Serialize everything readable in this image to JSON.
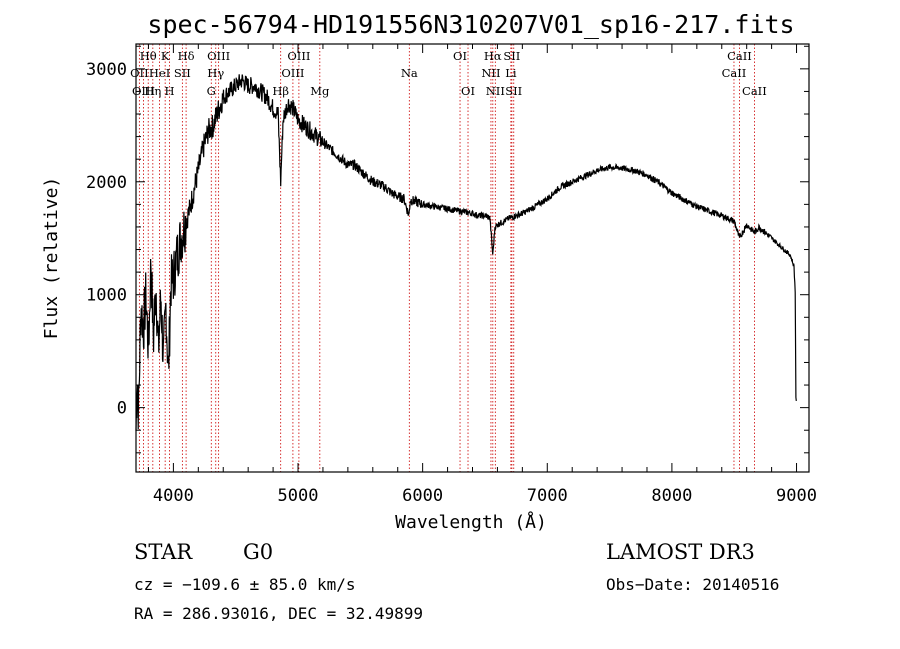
{
  "chart_data": {
    "type": "line",
    "title": "spec-56794-HD191556N310207V01_sp16-217.fits",
    "xlabel": "Wavelength (Å)",
    "ylabel": "Flux (relative)",
    "xlim": [
      3700,
      9100
    ],
    "ylim": [
      -570,
      3220
    ],
    "xticks": [
      4000,
      5000,
      6000,
      7000,
      8000,
      9000
    ],
    "yticks": [
      0,
      1000,
      2000,
      3000
    ],
    "series": [
      {
        "name": "Flux",
        "x": [
          3700,
          3710,
          3720,
          3740,
          3760,
          3780,
          3800,
          3820,
          3840,
          3860,
          3880,
          3900,
          3920,
          3940,
          3960,
          3980,
          4000,
          4030,
          4060,
          4100,
          4130,
          4160,
          4200,
          4240,
          4280,
          4320,
          4350,
          4400,
          4450,
          4500,
          4550,
          4600,
          4650,
          4700,
          4750,
          4800,
          4840,
          4861,
          4880,
          4920,
          4960,
          5000,
          5050,
          5100,
          5150,
          5200,
          5250,
          5300,
          5350,
          5400,
          5450,
          5500,
          5550,
          5600,
          5650,
          5700,
          5750,
          5800,
          5850,
          5890,
          5900,
          5950,
          6000,
          6100,
          6200,
          6300,
          6400,
          6450,
          6500,
          6540,
          6563,
          6580,
          6600,
          6650,
          6700,
          6800,
          6900,
          7000,
          7100,
          7200,
          7300,
          7400,
          7500,
          7600,
          7700,
          7800,
          7900,
          8000,
          8100,
          8200,
          8300,
          8400,
          8500,
          8542,
          8600,
          8662,
          8700,
          8800,
          8850,
          8900,
          8950,
          8980,
          8990,
          8995,
          9000
        ],
        "y": [
          -200,
          300,
          -50,
          900,
          700,
          1000,
          500,
          1300,
          600,
          1100,
          500,
          1000,
          400,
          900,
          300,
          1100,
          1150,
          1350,
          1500,
          1650,
          1750,
          1900,
          2100,
          2300,
          2450,
          2500,
          2600,
          2750,
          2800,
          2850,
          2900,
          2850,
          2850,
          2800,
          2750,
          2650,
          2600,
          2000,
          2550,
          2700,
          2650,
          2550,
          2500,
          2450,
          2400,
          2350,
          2300,
          2250,
          2200,
          2150,
          2150,
          2100,
          2050,
          2000,
          1980,
          1950,
          1900,
          1870,
          1850,
          1700,
          1840,
          1820,
          1800,
          1780,
          1760,
          1740,
          1720,
          1700,
          1700,
          1680,
          1350,
          1600,
          1620,
          1650,
          1680,
          1720,
          1780,
          1850,
          1950,
          2000,
          2050,
          2100,
          2130,
          2120,
          2100,
          2060,
          1990,
          1900,
          1840,
          1780,
          1740,
          1700,
          1650,
          1500,
          1620,
          1550,
          1600,
          1500,
          1450,
          1400,
          1350,
          1250,
          1000,
          100,
          0
        ]
      }
    ],
    "lines": [
      {
        "name": "Hθ",
        "wl": 3798,
        "row": 0
      },
      {
        "name": "OII",
        "wl": 3727,
        "row": 1
      },
      {
        "name": "OIII",
        "wl": 3760,
        "row": 2
      },
      {
        "name": "Hη",
        "wl": 3835,
        "row": 2
      },
      {
        "name": "HeI",
        "wl": 3889,
        "row": 1
      },
      {
        "name": "K",
        "wl": 3934,
        "row": 0
      },
      {
        "name": "H",
        "wl": 3969,
        "row": 2
      },
      {
        "name": "SII",
        "wl": 4072,
        "row": 1
      },
      {
        "name": "Hδ",
        "wl": 4102,
        "row": 0
      },
      {
        "name": "OIII",
        "wl": 4363,
        "row": 0
      },
      {
        "name": "Hγ",
        "wl": 4340,
        "row": 1
      },
      {
        "name": "G",
        "wl": 4304,
        "row": 2
      },
      {
        "name": "Hβ",
        "wl": 4861,
        "row": 2
      },
      {
        "name": "OIII",
        "wl": 4959,
        "row": 1
      },
      {
        "name": "OIII",
        "wl": 5007,
        "row": 0
      },
      {
        "name": "Mg",
        "wl": 5175,
        "row": 2
      },
      {
        "name": "Na",
        "wl": 5893,
        "row": 1
      },
      {
        "name": "OI",
        "wl": 6300,
        "row": 0
      },
      {
        "name": "OI",
        "wl": 6364,
        "row": 2
      },
      {
        "name": "NII",
        "wl": 6548,
        "row": 1
      },
      {
        "name": "Hα",
        "wl": 6563,
        "row": 0
      },
      {
        "name": "NII",
        "wl": 6583,
        "row": 2
      },
      {
        "name": "SII",
        "wl": 6716,
        "row": 0
      },
      {
        "name": "Li",
        "wl": 6708,
        "row": 1
      },
      {
        "name": "SII",
        "wl": 6731,
        "row": 2
      },
      {
        "name": "CaII",
        "wl": 8498,
        "row": 1
      },
      {
        "name": "CaII",
        "wl": 8542,
        "row": 0
      },
      {
        "name": "CaII",
        "wl": 8662,
        "row": 2
      }
    ]
  },
  "info": {
    "object_class": "STAR",
    "subclass": "G0",
    "survey": "LAMOST DR3",
    "cz": "cz = −109.6 ± 85.0 km/s",
    "obs_date": "Obs−Date: 20140516",
    "radec": "RA = 286.93016, DEC =  32.49899"
  },
  "colors": {
    "spectrum": "#000000",
    "lines": "#cc0000",
    "axes": "#000000"
  }
}
